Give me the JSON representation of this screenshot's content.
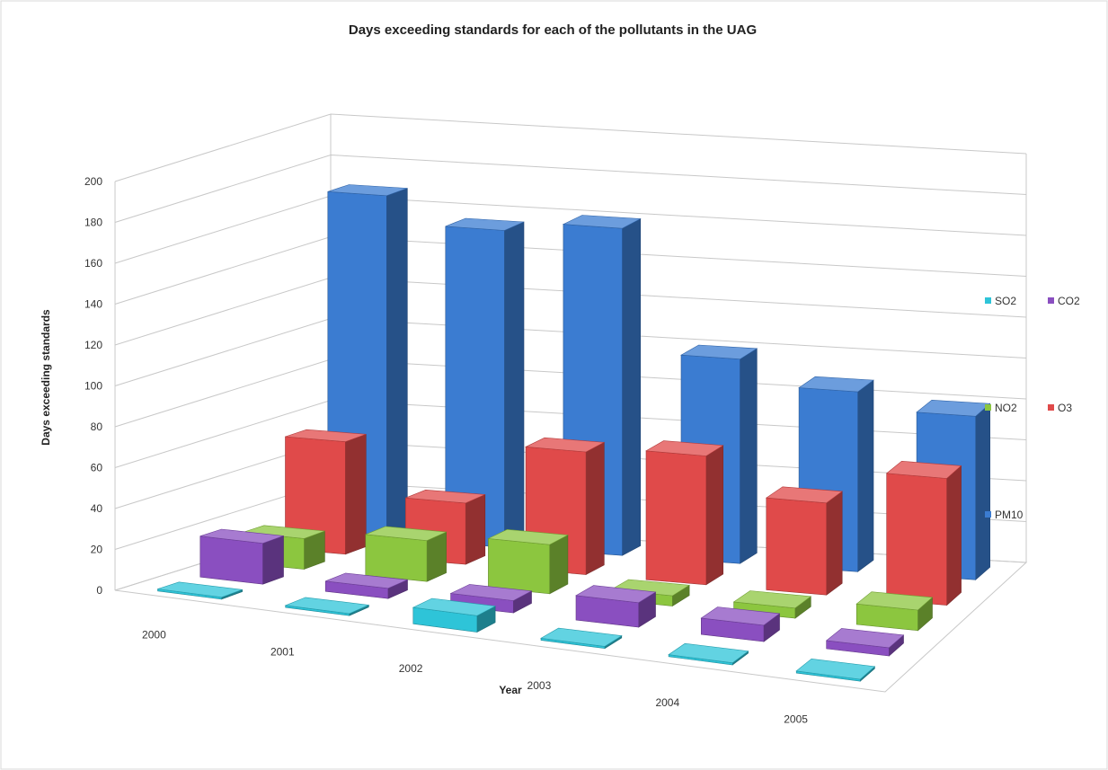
{
  "chart_data": {
    "type": "bar",
    "variant": "3d-column",
    "title": "Days exceeding standards for each of the pollutants in the UAG",
    "xlabel": "Year",
    "ylabel": "Days exceeding standards",
    "ylim": [
      0,
      200
    ],
    "yticks": [
      0,
      20,
      40,
      60,
      80,
      100,
      120,
      140,
      160,
      180,
      200
    ],
    "categories": [
      "2000",
      "2001",
      "2002",
      "2003",
      "2004",
      "2005"
    ],
    "grid": true,
    "legend_position": "right",
    "series": [
      {
        "name": "SO2",
        "color": "#2ec4d8",
        "values": [
          1,
          1,
          8,
          1,
          1,
          1
        ]
      },
      {
        "name": "CO2",
        "color": "#8a4fc0",
        "values": [
          20,
          5,
          6,
          12,
          8,
          4
        ]
      },
      {
        "name": "NO2",
        "color": "#8cc63f",
        "values": [
          15,
          20,
          24,
          5,
          5,
          10
        ]
      },
      {
        "name": "O3",
        "color": "#e04a4a",
        "values": [
          55,
          30,
          60,
          63,
          45,
          62
        ]
      },
      {
        "name": "PM10",
        "color": "#3b7cd1",
        "values": [
          168,
          155,
          160,
          100,
          88,
          80
        ]
      }
    ]
  }
}
